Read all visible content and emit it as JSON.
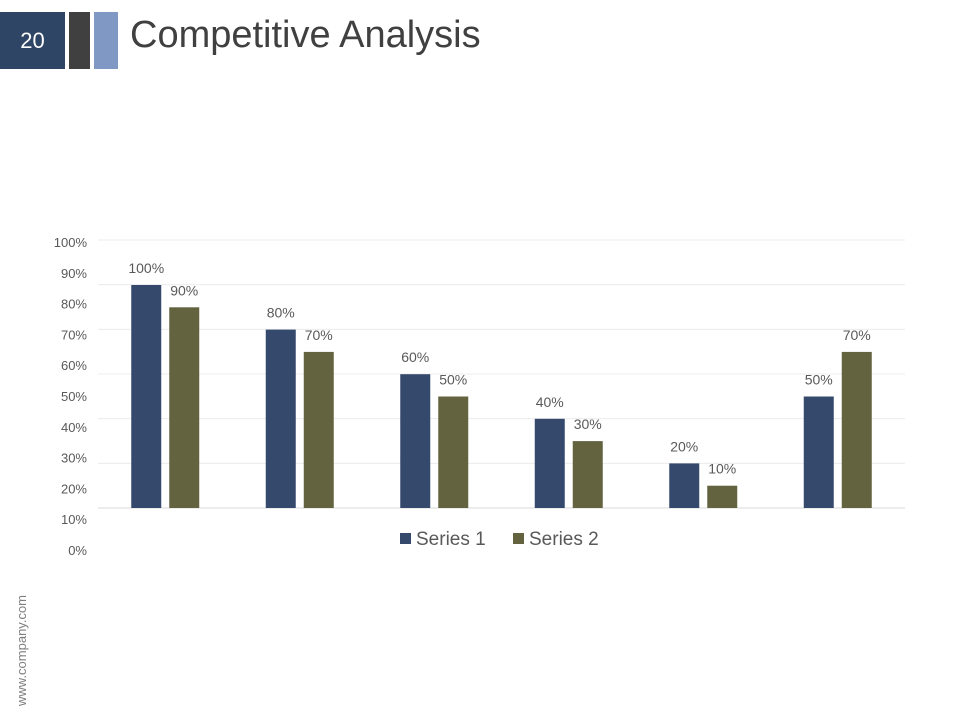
{
  "slide": {
    "number": "20",
    "title": "Competitive Analysis",
    "footer": "www.company.com"
  },
  "colors": {
    "slide_number_bg": "#2e4566",
    "accent_dark": "#404040",
    "accent_light": "#7f98c4",
    "series1": "#34496b",
    "series2": "#646340"
  },
  "chart_data": {
    "type": "bar",
    "categories": [
      "",
      "",
      "",
      "",
      "",
      ""
    ],
    "series": [
      {
        "name": "Series 1",
        "values": [
          100,
          80,
          60,
          40,
          20,
          50
        ],
        "labels": [
          "100%",
          "80%",
          "60%",
          "40%",
          "20%",
          "50%"
        ]
      },
      {
        "name": "Series 2",
        "values": [
          90,
          70,
          50,
          30,
          10,
          70
        ],
        "labels": [
          "90%",
          "70%",
          "50%",
          "30%",
          "10%",
          "70%"
        ]
      }
    ],
    "y_ticks": [
      "100%",
      "90%",
      "80%",
      "70%",
      "60%",
      "50%",
      "40%",
      "30%",
      "20%",
      "10%",
      "0%"
    ],
    "ylim": [
      0,
      100
    ],
    "grid": true,
    "legend": "bottom",
    "title": "",
    "xlabel": "",
    "ylabel": ""
  }
}
